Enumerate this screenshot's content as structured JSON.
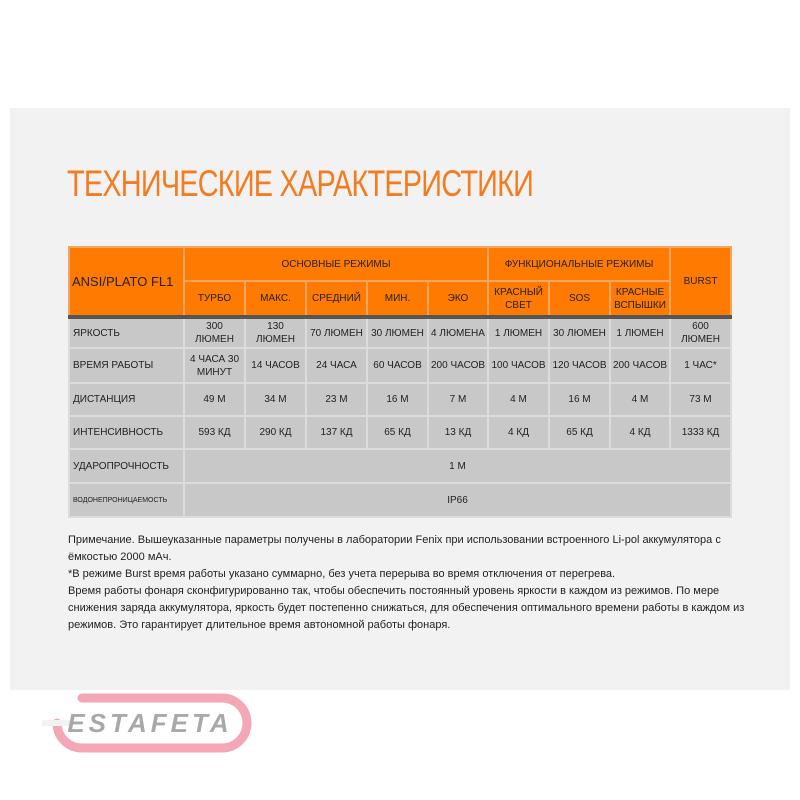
{
  "title": "ТЕХНИЧЕСКИЕ ХАРАКТЕРИСТИКИ",
  "table": {
    "corner": "ANSI/PLATO FL1",
    "groups": {
      "main": "ОСНОВНЫЕ РЕЖИМЫ",
      "functional": "ФУНКЦИОНАЛЬНЫЕ РЕЖИМЫ",
      "burst": "BURST"
    },
    "modes": [
      "ТУРБО",
      "МАКС.",
      "СРЕДНИЙ",
      "МИН.",
      "ЭКО",
      "КРАСНЫЙ СВЕТ",
      "SOS",
      "КРАСНЫЕ ВСПЫШКИ"
    ],
    "rows": [
      {
        "label": "ЯРКОСТЬ",
        "values": [
          "300 ЛЮМЕН",
          "130 ЛЮМЕН",
          "70 ЛЮМЕН",
          "30 ЛЮМЕН",
          "4 ЛЮМЕНА",
          "1 ЛЮМЕН",
          "30 ЛЮМЕН",
          "1 ЛЮМЕН",
          "600 ЛЮМЕН"
        ]
      },
      {
        "label": "ВРЕМЯ РАБОТЫ",
        "values": [
          "4 ЧАСА 30 МИНУТ",
          "14 ЧАСОВ",
          "24 ЧАСА",
          "60 ЧАСОВ",
          "200 ЧАСОВ",
          "100 ЧАСОВ",
          "120 ЧАСОВ",
          "200 ЧАСОВ",
          "1 ЧАС*"
        ]
      },
      {
        "label": "ДИСТАНЦИЯ",
        "values": [
          "49 М",
          "34 М",
          "23 М",
          "16 М",
          "7 М",
          "4 М",
          "16 М",
          "4 М",
          "73 М"
        ]
      },
      {
        "label": "ИНТЕНСИВНОСТЬ",
        "values": [
          "593 КД",
          "290 КД",
          "137 КД",
          "65 КД",
          "13 КД",
          "4 КД",
          "65 КД",
          "4 КД",
          "1333 КД"
        ]
      }
    ],
    "impact": {
      "label": "УДАРОПРОЧНОСТЬ",
      "value": "1 М"
    },
    "water": {
      "label": "ВОДОНЕПРОНИЦАЕМОСТЬ",
      "value": "IP66"
    }
  },
  "notes": [
    "Примечание. Вышеуказанные параметры получены в лаборатории Fenix при использовании встроенного Li-pol аккумулятора с ёмкостью 2000 мАч.",
    "*В режиме Burst время работы указано суммарно, без учета перерыва во время отключения от перегрева.",
    "Время работы фонаря сконфигурированно так, чтобы обеспечить постоянный уровень яркости в каждом из режимов. По мере снижения заряда аккумулятора, яркость будет постепенно снижаться, для обеспечения оптимального времени работы в каждом из режимов. Это гарантирует длительное время автономной работы фонаря."
  ],
  "watermark": "ESTAFETA",
  "colors": {
    "accent": "#ff7a00",
    "title": "#f47c20",
    "cell": "#c8c8c8",
    "watermark": "#f4a7b4"
  }
}
